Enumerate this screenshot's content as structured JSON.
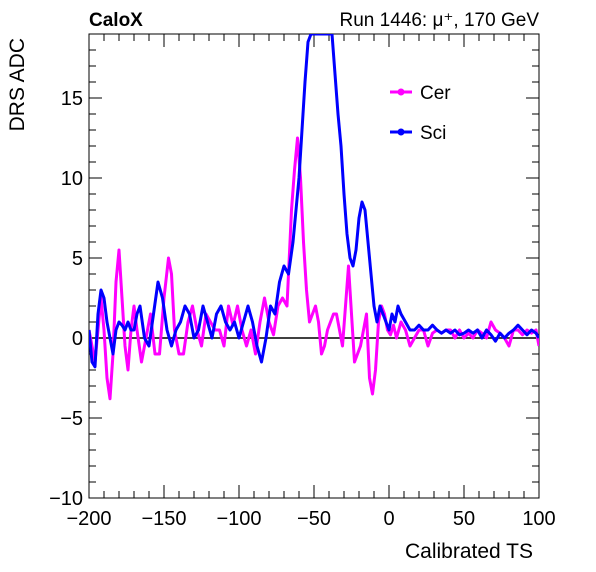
{
  "header": {
    "left_label": "CaloX",
    "right_label": "Run 1446:   μ⁺, 170 GeV"
  },
  "chart_data": {
    "type": "line",
    "title": "",
    "xlabel": "Calibrated TS",
    "ylabel": "DRS ADC",
    "xlim": [
      -200,
      100
    ],
    "ylim": [
      -10,
      19
    ],
    "x_ticks": [
      -200,
      -150,
      -100,
      -50,
      0,
      50,
      100
    ],
    "x_tick_labels": [
      "−200",
      "−150",
      "−100",
      "−50",
      "0",
      "50",
      "100"
    ],
    "y_ticks": [
      -10,
      -5,
      0,
      5,
      10,
      15
    ],
    "y_tick_labels": [
      "−10",
      "−5",
      "0",
      "5",
      "10",
      "15"
    ],
    "grid": false,
    "legend_position": "top-right",
    "baseline_y": 0,
    "series": [
      {
        "name": "Cer",
        "color": "#ff00ff",
        "x": [
          -200,
          -198,
          -196,
          -194,
          -192,
          -190,
          -188,
          -186,
          -184,
          -182,
          -180,
          -178,
          -176,
          -174,
          -172,
          -170,
          -168,
          -165,
          -162,
          -159,
          -156,
          -153,
          -150,
          -147,
          -145,
          -143,
          -140,
          -137,
          -134,
          -131,
          -128,
          -125,
          -122,
          -119,
          -116,
          -113,
          -110,
          -107,
          -104,
          -101,
          -98,
          -95,
          -92,
          -89,
          -86,
          -83,
          -80,
          -77,
          -74,
          -71,
          -68,
          -65,
          -63,
          -61,
          -59,
          -57,
          -55,
          -53,
          -51,
          -49,
          -47,
          -45,
          -43,
          -41,
          -39,
          -37,
          -35,
          -33,
          -31,
          -29,
          -27,
          -25,
          -23,
          -21,
          -19,
          -17,
          -15,
          -13,
          -11,
          -9,
          -7,
          -5,
          -3,
          -1,
          1,
          3,
          5,
          8,
          11,
          14,
          17,
          20,
          23,
          26,
          29,
          32,
          35,
          38,
          41,
          44,
          47,
          50,
          53,
          56,
          59,
          62,
          65,
          68,
          71,
          74,
          77,
          80,
          83,
          86,
          89,
          92,
          95,
          98,
          100
        ],
        "values": [
          0.5,
          -0.5,
          -1.5,
          0.5,
          2.5,
          0.5,
          -2.5,
          -3.8,
          -1.0,
          3.5,
          5.5,
          2.5,
          -0.5,
          -2.0,
          0.5,
          2.0,
          0.5,
          -1.5,
          0.0,
          1.5,
          -1.0,
          -1.0,
          2.5,
          5.0,
          4.0,
          0.5,
          -1.0,
          -1.0,
          1.0,
          2.0,
          0.5,
          -0.5,
          1.5,
          1.0,
          0.5,
          0.5,
          -0.5,
          2.0,
          0.8,
          2.0,
          0.5,
          -0.5,
          0.5,
          -1.0,
          1.0,
          2.5,
          1.0,
          0.2,
          2.0,
          2.5,
          2.0,
          8.0,
          10.5,
          12.5,
          10.0,
          6.0,
          3.0,
          1.0,
          1.5,
          2.0,
          1.0,
          -1.0,
          -0.5,
          0.5,
          1.0,
          1.5,
          1.5,
          0.5,
          -0.5,
          2.0,
          4.5,
          1.5,
          -1.5,
          -1.0,
          -0.5,
          0.5,
          1.5,
          -2.5,
          -3.5,
          -2.0,
          1.0,
          2.0,
          1.5,
          0.5,
          0.2,
          0.8,
          0.0,
          1.0,
          0.5,
          -0.5,
          0.0,
          0.5,
          0.5,
          -0.5,
          0.3,
          0.5,
          0.3,
          0.5,
          0.5,
          0.0,
          0.5,
          0.0,
          0.3,
          0.0,
          0.5,
          0.3,
          0.0,
          1.0,
          0.5,
          0.3,
          0.0,
          -0.5,
          0.5,
          0.5,
          0.2,
          0.5,
          0.3,
          0.5,
          -0.5
        ]
      },
      {
        "name": "Sci",
        "color": "#0000ff",
        "x": [
          -200,
          -198,
          -196,
          -194,
          -192,
          -190,
          -188,
          -186,
          -184,
          -182,
          -180,
          -178,
          -176,
          -174,
          -172,
          -170,
          -168,
          -166,
          -163,
          -160,
          -157,
          -154,
          -151,
          -148,
          -145,
          -142,
          -139,
          -136,
          -133,
          -130,
          -127,
          -124,
          -121,
          -118,
          -115,
          -112,
          -109,
          -106,
          -103,
          -100,
          -97,
          -94,
          -91,
          -88,
          -85,
          -82,
          -79,
          -76,
          -73,
          -70,
          -67,
          -64,
          -62,
          -60,
          -58,
          -56,
          -54,
          -52,
          -50,
          -48,
          -46,
          -44,
          -42,
          -40,
          -38,
          -36,
          -34,
          -32,
          -30,
          -28,
          -26,
          -24,
          -22,
          -20,
          -18,
          -16,
          -14,
          -12,
          -10,
          -8,
          -6,
          -4,
          -2,
          0,
          2,
          4,
          6,
          8,
          11,
          14,
          17,
          20,
          23,
          26,
          29,
          32,
          35,
          38,
          41,
          44,
          47,
          50,
          53,
          56,
          59,
          62,
          65,
          68,
          71,
          74,
          77,
          80,
          83,
          86,
          89,
          92,
          95,
          98,
          100
        ],
        "values": [
          0.5,
          -1.5,
          -1.8,
          1.5,
          3.0,
          2.5,
          1.0,
          0.0,
          -1.0,
          0.5,
          1.0,
          0.8,
          0.5,
          1.0,
          0.5,
          0.5,
          1.5,
          2.0,
          0.0,
          -0.5,
          1.5,
          3.5,
          2.5,
          0.5,
          -0.5,
          0.5,
          1.0,
          2.0,
          1.5,
          0.0,
          0.5,
          2.0,
          1.0,
          0.0,
          1.5,
          2.0,
          1.0,
          0.5,
          1.0,
          0.0,
          1.0,
          2.0,
          1.0,
          -0.5,
          -1.5,
          0.0,
          2.0,
          1.5,
          3.5,
          4.5,
          4.0,
          6.0,
          8.0,
          10.0,
          13.0,
          16.0,
          18.5,
          19.0,
          19.0,
          19.0,
          19.0,
          19.0,
          19.0,
          19.0,
          19.0,
          16.5,
          14.0,
          12.0,
          9.0,
          6.5,
          5.0,
          4.5,
          5.5,
          7.5,
          8.5,
          8.0,
          6.0,
          4.0,
          2.0,
          1.0,
          2.0,
          1.5,
          1.0,
          0.5,
          1.5,
          1.0,
          2.0,
          1.5,
          1.0,
          0.5,
          0.5,
          0.8,
          0.5,
          0.5,
          0.8,
          0.5,
          0.3,
          0.5,
          0.3,
          0.5,
          0.2,
          0.3,
          0.5,
          0.3,
          0.5,
          0.0,
          0.5,
          0.2,
          -0.2,
          0.3,
          0.0,
          0.3,
          0.5,
          0.8,
          0.5,
          0.2,
          0.5,
          0.3,
          0.0
        ]
      }
    ]
  }
}
